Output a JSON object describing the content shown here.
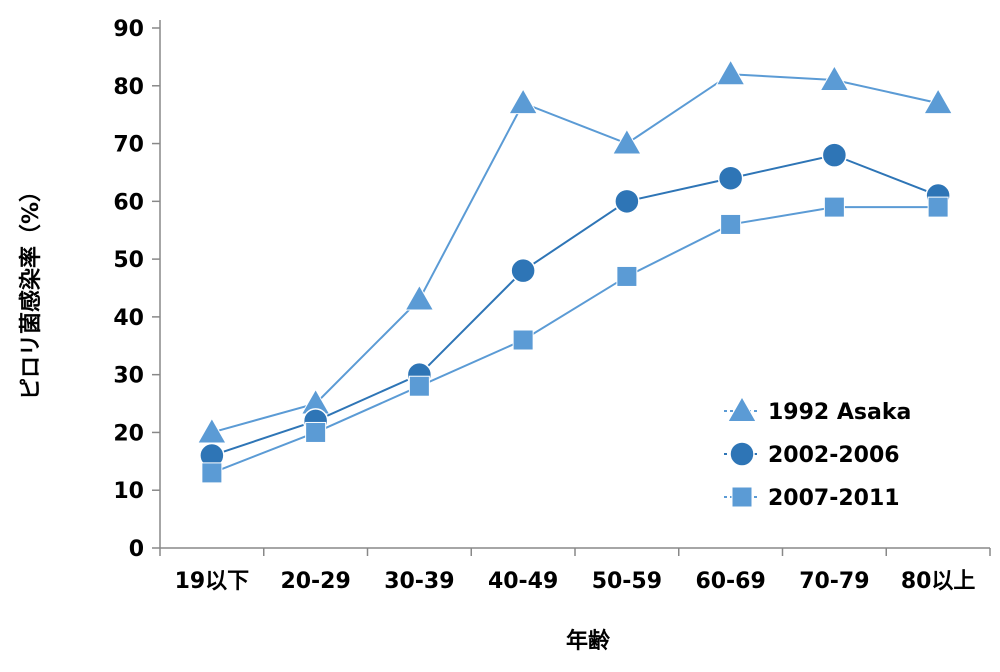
{
  "chart_data": {
    "type": "line",
    "categories": [
      "19以下",
      "20-29",
      "30-39",
      "40-49",
      "50-59",
      "60-69",
      "70-79",
      "80以上"
    ],
    "series": [
      {
        "name": "1992 Asaka",
        "marker": "triangle",
        "color": "#5b9bd5",
        "values": [
          20,
          25,
          43,
          77,
          70,
          82,
          81,
          77
        ]
      },
      {
        "name": "2002-2006",
        "marker": "circle",
        "color": "#2e75b6",
        "values": [
          16,
          22,
          30,
          48,
          60,
          64,
          68,
          61
        ]
      },
      {
        "name": "2007-2011",
        "marker": "square",
        "color": "#5b9bd5",
        "values": [
          13,
          20,
          28,
          36,
          47,
          56,
          59,
          59
        ]
      }
    ],
    "xlabel": "年齢",
    "ylabel": "ピロリ菌感染率（%）",
    "ylim": [
      0,
      90
    ],
    "yticks": [
      0,
      10,
      20,
      30,
      40,
      50,
      60,
      70,
      80,
      90
    ],
    "grid": false,
    "legend_position": "bottom-right"
  }
}
